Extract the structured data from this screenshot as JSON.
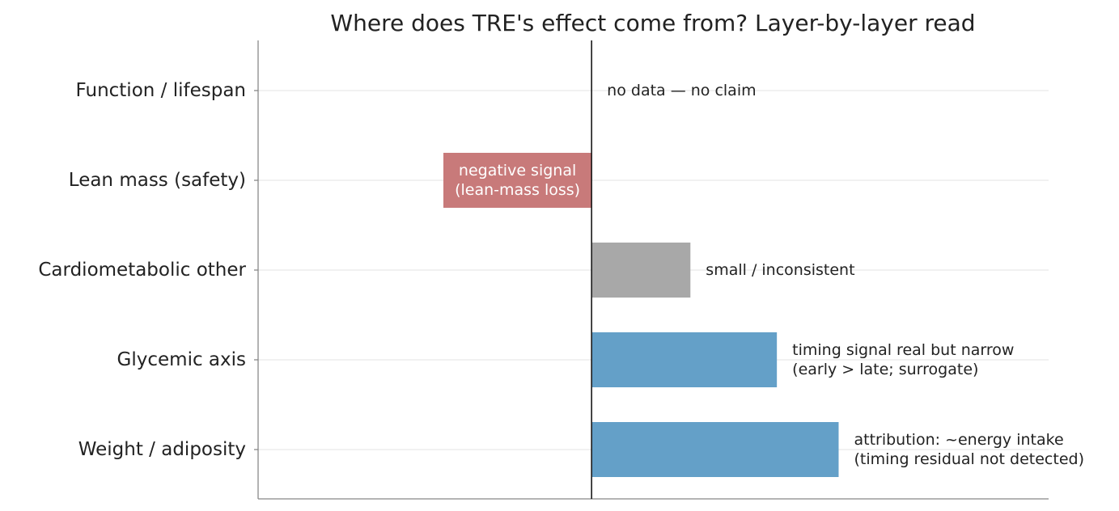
{
  "chart_data": {
    "type": "bar",
    "orientation": "horizontal",
    "title": "Where does TRE's effect come from? Layer-by-layer read",
    "xlabel": "",
    "ylabel": "",
    "xlim": [
      -1.35,
      1.85
    ],
    "grid": "horizontal",
    "categories": [
      "Weight / adiposity",
      "Glycemic axis",
      "Cardiometabolic other",
      "Lean mass (safety)",
      "Function / lifespan"
    ],
    "values": [
      1.0,
      0.75,
      0.4,
      -0.6,
      0.0
    ],
    "colors": [
      "#64a0c8",
      "#64a0c8",
      "#a8a8a8",
      "#c87a7a",
      "#64a0c8"
    ],
    "annotations": [
      {
        "lines": [
          "attribution: ~energy intake",
          "(timing residual not detected)"
        ],
        "placement": "right",
        "color": "#222222"
      },
      {
        "lines": [
          "timing signal real but narrow",
          "(early > late; surrogate)"
        ],
        "placement": "right",
        "color": "#222222"
      },
      {
        "lines": [
          "small / inconsistent"
        ],
        "placement": "right",
        "color": "#222222"
      },
      {
        "lines": [
          "negative signal",
          "(lean-mass loss)"
        ],
        "placement": "inside",
        "color": "#ffffff"
      },
      {
        "lines": [
          "no data — no claim"
        ],
        "placement": "right",
        "color": "#222222"
      }
    ]
  }
}
